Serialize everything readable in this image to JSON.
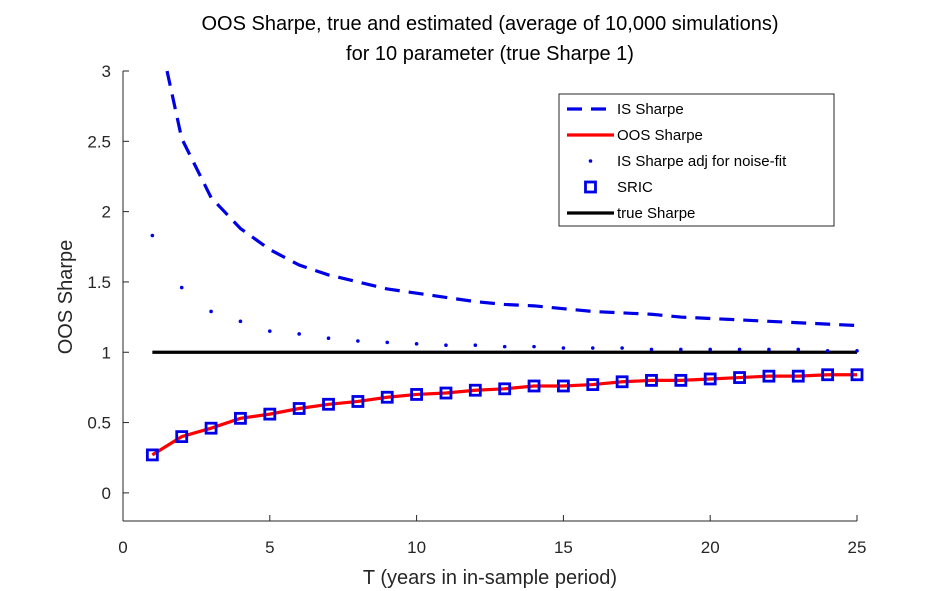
{
  "chart_data": {
    "type": "line",
    "title": "OOS Sharpe, true and estimated  (average of 10,000 simulations)",
    "subtitle": "for 10 parameter (true Sharpe 1)",
    "xlabel": "T (years in in-sample period)",
    "ylabel": "OOS Sharpe",
    "xlim": [
      0,
      25
    ],
    "ylim": [
      -0.2,
      3
    ],
    "xticks": [
      0,
      5,
      10,
      15,
      20,
      25
    ],
    "yticks": [
      0,
      0.5,
      1,
      1.5,
      2,
      2.5,
      3
    ],
    "xtick_labels": [
      "0",
      "5",
      "10",
      "15",
      "20",
      "25"
    ],
    "ytick_labels": [
      "0",
      "0.5",
      "1",
      "1.5",
      "2",
      "2.5",
      "3"
    ],
    "grid": false,
    "legend_position": "top-right",
    "x": [
      1,
      2,
      3,
      4,
      5,
      6,
      7,
      8,
      9,
      10,
      11,
      12,
      13,
      14,
      15,
      16,
      17,
      18,
      19,
      20,
      21,
      22,
      23,
      24,
      25
    ],
    "series": [
      {
        "name": "IS Sharpe",
        "style": "dashed",
        "color": "#0000e6",
        "x": [
          1.5,
          2,
          3,
          4,
          5,
          6,
          7,
          8,
          9,
          10,
          11,
          12,
          13,
          14,
          15,
          16,
          17,
          18,
          19,
          20,
          21,
          22,
          23,
          24,
          25
        ],
        "values": [
          3.0,
          2.52,
          2.1,
          1.88,
          1.73,
          1.62,
          1.55,
          1.5,
          1.45,
          1.42,
          1.39,
          1.36,
          1.34,
          1.33,
          1.31,
          1.29,
          1.28,
          1.27,
          1.25,
          1.24,
          1.23,
          1.22,
          1.21,
          1.2,
          1.19
        ]
      },
      {
        "name": "OOS Sharpe",
        "style": "solid",
        "color": "#ff0000",
        "values": [
          0.27,
          0.4,
          0.46,
          0.53,
          0.56,
          0.6,
          0.63,
          0.65,
          0.68,
          0.7,
          0.71,
          0.73,
          0.74,
          0.76,
          0.76,
          0.77,
          0.79,
          0.8,
          0.8,
          0.81,
          0.82,
          0.83,
          0.83,
          0.84,
          0.84
        ]
      },
      {
        "name": "IS Sharpe adj for noise-fit",
        "style": "dots",
        "color": "#0000e6",
        "values": [
          1.83,
          1.46,
          1.29,
          1.22,
          1.15,
          1.13,
          1.1,
          1.08,
          1.07,
          1.06,
          1.05,
          1.05,
          1.04,
          1.04,
          1.03,
          1.03,
          1.03,
          1.02,
          1.02,
          1.02,
          1.02,
          1.02,
          1.02,
          1.01,
          1.01
        ]
      },
      {
        "name": "SRIC",
        "style": "squares",
        "color": "#0000e6",
        "values": [
          0.27,
          0.4,
          0.46,
          0.53,
          0.56,
          0.6,
          0.63,
          0.65,
          0.68,
          0.7,
          0.71,
          0.73,
          0.74,
          0.76,
          0.76,
          0.77,
          0.79,
          0.8,
          0.8,
          0.81,
          0.82,
          0.83,
          0.83,
          0.84,
          0.84
        ]
      },
      {
        "name": "true Sharpe",
        "style": "solid",
        "color": "#000000",
        "x": [
          1,
          25
        ],
        "values": [
          1,
          1
        ]
      }
    ]
  }
}
